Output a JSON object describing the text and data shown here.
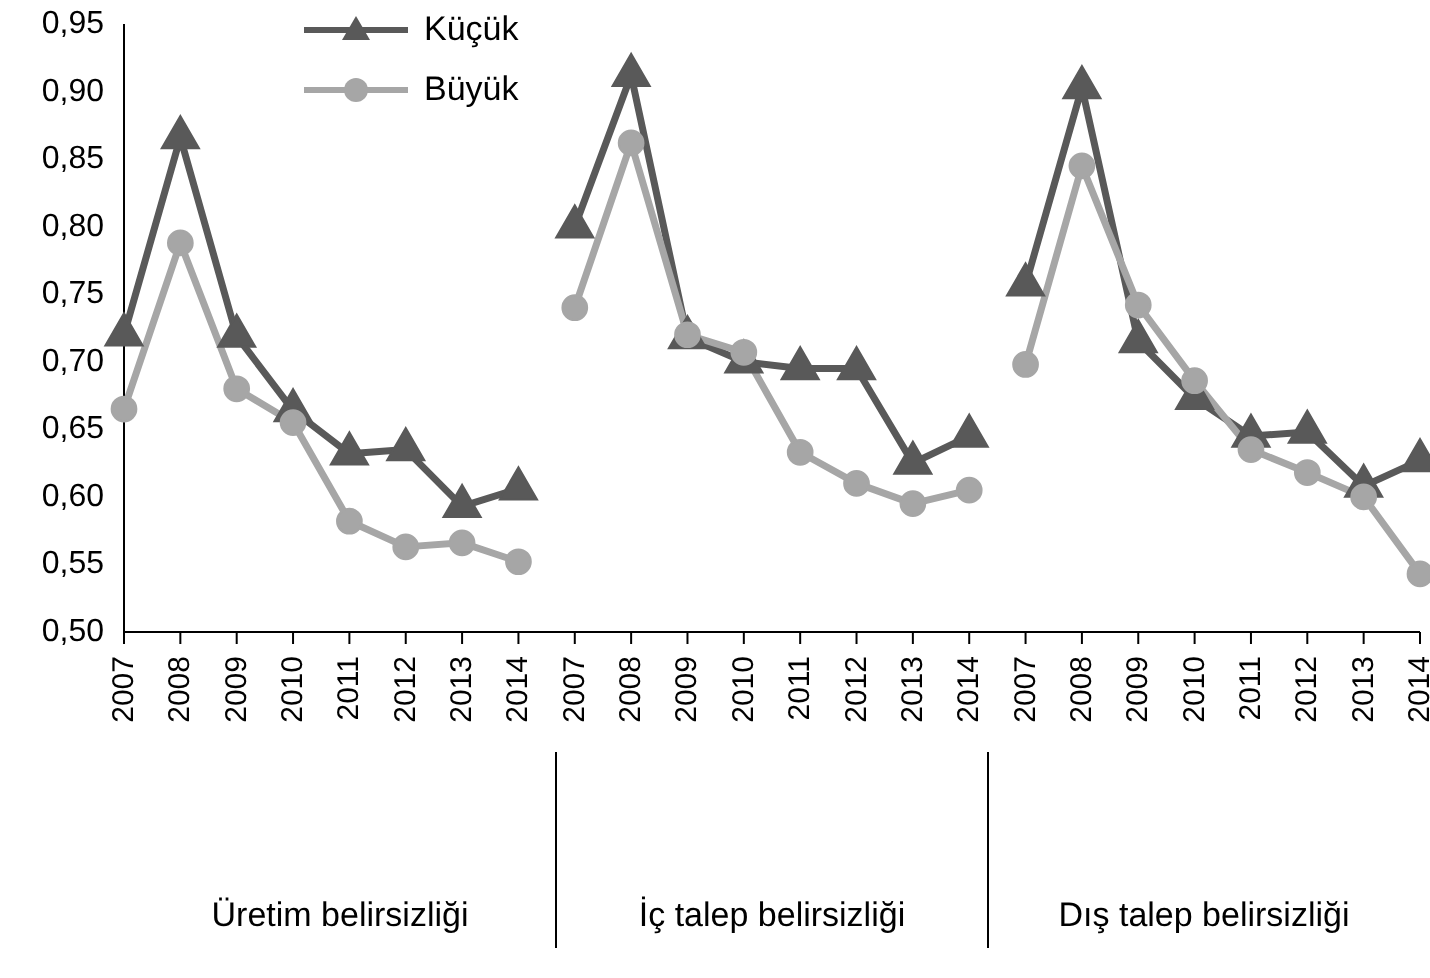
{
  "chart_data": {
    "type": "line",
    "categories": [
      "2007",
      "2008",
      "2009",
      "2010",
      "2011",
      "2012",
      "2013",
      "2014",
      "2007",
      "2008",
      "2009",
      "2010",
      "2011",
      "2012",
      "2013",
      "2014",
      "2007",
      "2008",
      "2009",
      "2010",
      "2011",
      "2012",
      "2013",
      "2014"
    ],
    "annotations": [
      "Üretim belirsizliği",
      "İç talep belirsizliği",
      "Dış talep belirsizliği"
    ],
    "series": [
      {
        "name": "Küçük",
        "color": "#595959",
        "marker": "triangle",
        "values": [
          0.72,
          0.866,
          0.719,
          0.664,
          0.632,
          0.635,
          0.593,
          0.606,
          null,
          null,
          null,
          null,
          null,
          null,
          null,
          null,
          null,
          null,
          null,
          null,
          null,
          null,
          null,
          null
        ]
      },
      {
        "name": "Büyük",
        "color": "#a6a6a6",
        "marker": "circle",
        "values": [
          0.665,
          0.788,
          0.68,
          0.655,
          0.582,
          0.563,
          0.566,
          0.552,
          null,
          null,
          null,
          null,
          null,
          null,
          null,
          null,
          null,
          null,
          null,
          null,
          null,
          null,
          null,
          null
        ]
      },
      {
        "color": "#595959",
        "marker": "triangle",
        "values": [
          null,
          null,
          null,
          null,
          null,
          null,
          null,
          null,
          0.8,
          0.912,
          0.718,
          0.7,
          0.695,
          0.695,
          0.625,
          0.645,
          null,
          null,
          null,
          null,
          null,
          null,
          null,
          null
        ]
      },
      {
        "color": "#a6a6a6",
        "marker": "circle",
        "values": [
          null,
          null,
          null,
          null,
          null,
          null,
          null,
          null,
          0.74,
          0.862,
          0.72,
          0.707,
          0.633,
          0.61,
          0.595,
          0.605,
          null,
          null,
          null,
          null,
          null,
          null,
          null,
          null
        ]
      },
      {
        "color": "#595959",
        "marker": "triangle",
        "values": [
          null,
          null,
          null,
          null,
          null,
          null,
          null,
          null,
          null,
          null,
          null,
          null,
          null,
          null,
          null,
          null,
          0.757,
          0.903,
          0.715,
          0.673,
          0.645,
          0.648,
          0.608,
          0.627
        ]
      },
      {
        "color": "#a6a6a6",
        "marker": "circle",
        "values": [
          null,
          null,
          null,
          null,
          null,
          null,
          null,
          null,
          null,
          null,
          null,
          null,
          null,
          null,
          null,
          null,
          0.698,
          0.845,
          0.742,
          0.686,
          0.635,
          0.618,
          0.6,
          0.543
        ]
      }
    ],
    "ylim": [
      0.5,
      0.95
    ],
    "yticks": [
      {
        "value": 0.5,
        "label": "0,50"
      },
      {
        "value": 0.55,
        "label": "0,55"
      },
      {
        "value": 0.6,
        "label": "0,60"
      },
      {
        "value": 0.65,
        "label": "0,65"
      },
      {
        "value": 0.7,
        "label": "0,70"
      },
      {
        "value": 0.75,
        "label": "0,75"
      },
      {
        "value": 0.8,
        "label": "0,80"
      },
      {
        "value": 0.85,
        "label": "0,85"
      },
      {
        "value": 0.9,
        "label": "0,90"
      },
      {
        "value": 0.95,
        "label": "0,95"
      }
    ],
    "grid": false,
    "legend": "top left",
    "line_style": "solid"
  }
}
